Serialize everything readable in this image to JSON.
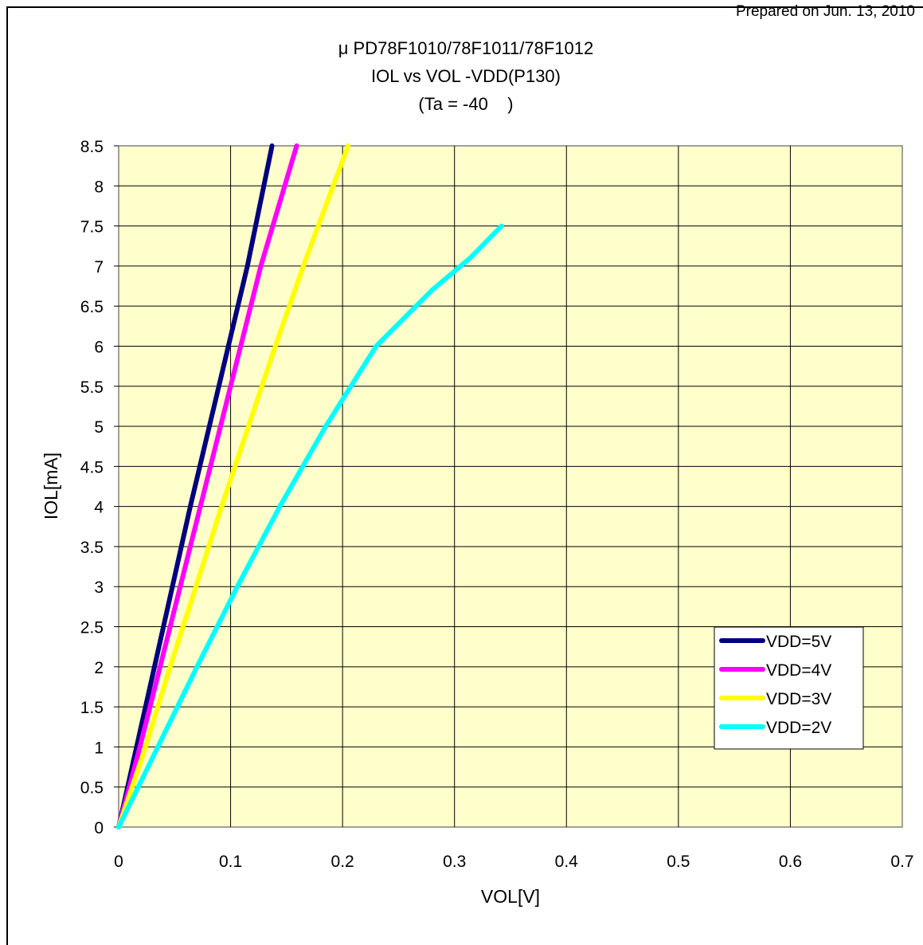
{
  "header": {
    "prepared_text": "Prepared on Jun. 13, 2010"
  },
  "chart_data": {
    "type": "line",
    "title_lines": [
      "μ PD78F1010/78F1011/78F1012",
      "IOL vs VOL  -VDD(P130)",
      "(Ta = -40    )"
    ],
    "xlabel": "VOL[V]",
    "ylabel": "IOL[mA]",
    "xlim": [
      0,
      0.7
    ],
    "ylim": [
      0,
      8.5
    ],
    "xticks": [
      "0",
      "0.1",
      "0.2",
      "0.3",
      "0.4",
      "0.5",
      "0.6",
      "0.7"
    ],
    "yticks": [
      "0",
      "0.5",
      "1",
      "1.5",
      "2",
      "2.5",
      "3",
      "3.5",
      "4",
      "4.5",
      "5",
      "5.5",
      "6",
      "6.5",
      "7",
      "7.5",
      "8",
      "8.5"
    ],
    "grid": true,
    "legend_position": "lower-right",
    "plot_background": "#ffffcc",
    "series": [
      {
        "name": "VDD=5V",
        "color": "#000080",
        "x": [
          0,
          0.016,
          0.032,
          0.048,
          0.064,
          0.081,
          0.098,
          0.115,
          0.137
        ],
        "y": [
          0,
          1,
          2,
          3,
          4,
          5,
          6,
          7,
          8.5
        ]
      },
      {
        "name": "VDD=4V",
        "color": "#ff00ff",
        "x": [
          0,
          0.019,
          0.037,
          0.055,
          0.073,
          0.091,
          0.109,
          0.127,
          0.159
        ],
        "y": [
          0,
          1,
          2,
          3,
          4,
          5,
          6,
          7,
          8.5
        ]
      },
      {
        "name": "VDD=3V",
        "color": "#ffff00",
        "x": [
          0,
          0.024,
          0.046,
          0.069,
          0.092,
          0.116,
          0.14,
          0.165,
          0.205
        ],
        "y": [
          0,
          1,
          2,
          3,
          4,
          5,
          6,
          7,
          8.5
        ]
      },
      {
        "name": "VDD=2V",
        "color": "#00ffff",
        "x": [
          0,
          0.035,
          0.07,
          0.106,
          0.144,
          0.185,
          0.23,
          0.28,
          0.314,
          0.342
        ],
        "y": [
          0,
          1,
          2,
          3,
          4,
          5,
          6,
          6.7,
          7.1,
          7.5
        ]
      }
    ]
  }
}
